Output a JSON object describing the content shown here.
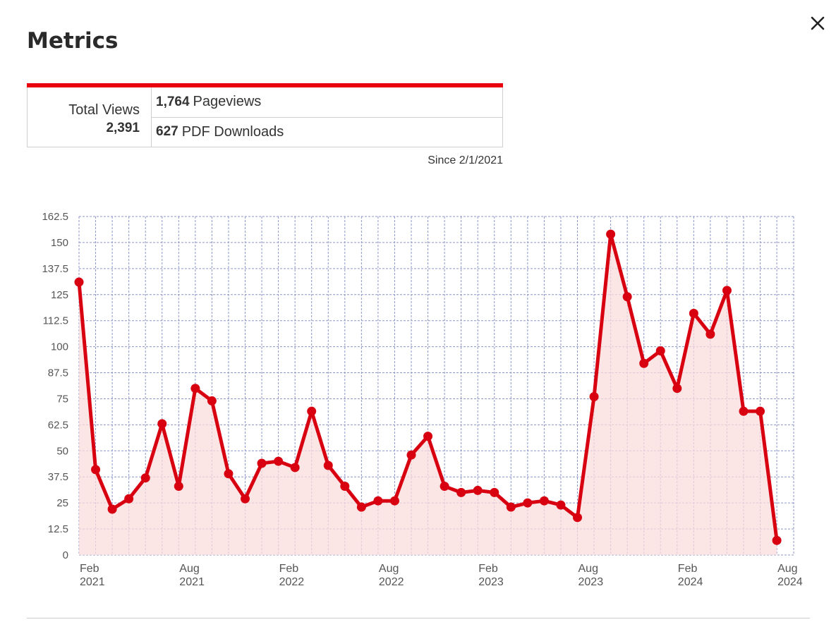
{
  "modal": {
    "title": "Metrics",
    "close_label": "Close"
  },
  "summary": {
    "total_label": "Total Views",
    "total_value": "2,391",
    "pageviews_value": "1,764",
    "pageviews_label": "Pageviews",
    "downloads_value": "627",
    "downloads_label": "PDF Downloads",
    "since_text": "Since 2/1/2021"
  },
  "colors": {
    "accent": "#e8000f",
    "line": "#d80010",
    "area_fill": "#f9dcdc",
    "grid": "#8e96c7"
  },
  "chart_data": {
    "type": "area",
    "title": "",
    "xlabel": "",
    "ylabel": "",
    "ylim": [
      0,
      162.5
    ],
    "y_ticks": [
      0,
      12.5,
      25,
      37.5,
      50,
      62.5,
      75,
      87.5,
      100,
      112.5,
      125,
      137.5,
      150,
      162.5
    ],
    "y_tick_labels": [
      "0",
      "12.5",
      "25",
      "37.5",
      "50",
      "62.5",
      "75",
      "87.5",
      "100",
      "112.5",
      "125",
      "137.5",
      "150",
      "162.5"
    ],
    "grid": true,
    "x_tick_labels": [
      {
        "month": "Feb",
        "year": "2021",
        "index": 0
      },
      {
        "month": "Aug",
        "year": "2021",
        "index": 6
      },
      {
        "month": "Feb",
        "year": "2022",
        "index": 12
      },
      {
        "month": "Aug",
        "year": "2022",
        "index": 18
      },
      {
        "month": "Feb",
        "year": "2023",
        "index": 24
      },
      {
        "month": "Aug",
        "year": "2023",
        "index": 30
      },
      {
        "month": "Feb",
        "year": "2024",
        "index": 36
      },
      {
        "month": "Aug",
        "year": "2024",
        "index": 42
      }
    ],
    "x": [
      "2021-02",
      "2021-03",
      "2021-04",
      "2021-05",
      "2021-06",
      "2021-07",
      "2021-08",
      "2021-09",
      "2021-10",
      "2021-11",
      "2021-12",
      "2022-01",
      "2022-02",
      "2022-03",
      "2022-04",
      "2022-05",
      "2022-06",
      "2022-07",
      "2022-08",
      "2022-09",
      "2022-10",
      "2022-11",
      "2022-12",
      "2023-01",
      "2023-02",
      "2023-03",
      "2023-04",
      "2023-05",
      "2023-06",
      "2023-07",
      "2023-08",
      "2023-09",
      "2023-10",
      "2023-11",
      "2023-12",
      "2024-01",
      "2024-02",
      "2024-03",
      "2024-04",
      "2024-05",
      "2024-06",
      "2024-07",
      "2024-08"
    ],
    "series": [
      {
        "values": [
          131,
          41,
          22,
          27,
          37,
          63,
          33,
          80,
          74,
          39,
          27,
          44,
          45,
          42,
          69,
          43,
          33,
          23,
          26,
          26,
          48,
          57,
          33,
          30,
          31,
          30,
          23,
          25,
          26,
          24,
          18,
          76,
          154,
          124,
          92,
          98,
          80,
          116,
          106,
          127,
          69,
          69,
          7
        ]
      }
    ]
  }
}
